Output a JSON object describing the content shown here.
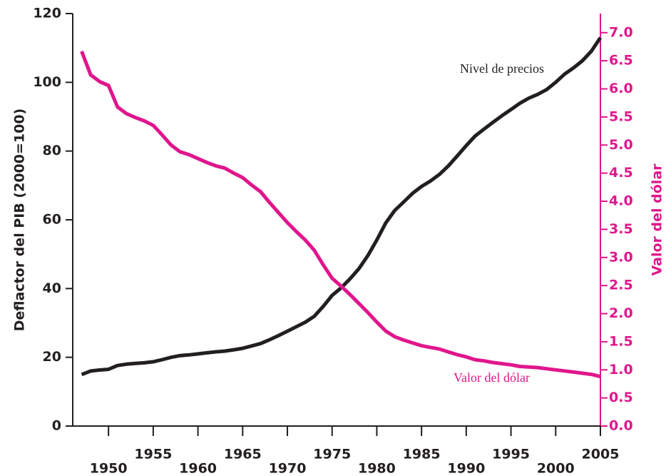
{
  "chart_data": {
    "type": "line",
    "x": [
      1947,
      1948,
      1949,
      1950,
      1951,
      1952,
      1953,
      1954,
      1955,
      1956,
      1957,
      1958,
      1959,
      1960,
      1961,
      1962,
      1963,
      1964,
      1965,
      1966,
      1967,
      1968,
      1969,
      1970,
      1971,
      1972,
      1973,
      1974,
      1975,
      1976,
      1977,
      1978,
      1979,
      1980,
      1981,
      1982,
      1983,
      1984,
      1985,
      1986,
      1987,
      1988,
      1989,
      1990,
      1991,
      1992,
      1993,
      1994,
      1995,
      1996,
      1997,
      1998,
      1999,
      2000,
      2001,
      2002,
      2003,
      2004,
      2005
    ],
    "series": [
      {
        "name": "Nivel de precios",
        "color": "#231f20",
        "axis": "y",
        "values": [
          15.0,
          16.0,
          16.3,
          16.5,
          17.6,
          18.0,
          18.2,
          18.4,
          18.7,
          19.3,
          20.0,
          20.5,
          20.7,
          21.0,
          21.3,
          21.6,
          21.8,
          22.2,
          22.6,
          23.3,
          24.0,
          25.1,
          26.3,
          27.6,
          28.9,
          30.2,
          31.9,
          34.8,
          38.0,
          40.2,
          42.8,
          45.8,
          49.6,
          54.1,
          59.1,
          62.7,
          65.2,
          67.7,
          69.7,
          71.3,
          73.2,
          75.7,
          78.6,
          81.6,
          84.4,
          86.4,
          88.4,
          90.3,
          92.1,
          93.9,
          95.4,
          96.5,
          97.9,
          100.0,
          102.4,
          104.2,
          106.3,
          109.1,
          113.0
        ]
      },
      {
        "name": "Valor del dólar",
        "color": "#e0168c",
        "axis": "y2",
        "values": [
          6.67,
          6.25,
          6.13,
          6.06,
          5.68,
          5.56,
          5.49,
          5.43,
          5.35,
          5.18,
          5.0,
          4.88,
          4.83,
          4.76,
          4.69,
          4.63,
          4.59,
          4.5,
          4.42,
          4.29,
          4.17,
          3.98,
          3.8,
          3.62,
          3.46,
          3.31,
          3.13,
          2.87,
          2.63,
          2.49,
          2.34,
          2.18,
          2.02,
          1.85,
          1.69,
          1.59,
          1.53,
          1.48,
          1.43,
          1.4,
          1.37,
          1.32,
          1.27,
          1.23,
          1.18,
          1.16,
          1.13,
          1.11,
          1.09,
          1.06,
          1.05,
          1.04,
          1.02,
          1.0,
          0.98,
          0.96,
          0.94,
          0.92,
          0.88
        ]
      }
    ],
    "ylabel": "Deflactor del PIB (2000=100)",
    "y2label": "Valor del dólar",
    "xlim": [
      1946,
      2005
    ],
    "xticks": [
      1950,
      1955,
      1960,
      1965,
      1970,
      1975,
      1980,
      1985,
      1990,
      1995,
      2000,
      2005
    ],
    "ylim": [
      0,
      120
    ],
    "yticks": [
      0,
      20,
      40,
      60,
      80,
      100,
      120
    ],
    "y2lim": [
      0,
      7.34
    ],
    "y2ticks": [
      {
        "value": 0,
        "label": "0.0"
      },
      0.5,
      {
        "value": 1,
        "label": "1.0"
      },
      1.5,
      {
        "value": 2,
        "label": "2.0"
      },
      2.5,
      {
        "value": 3,
        "label": "3.0"
      },
      3.5,
      {
        "value": 4,
        "label": "4.0"
      },
      4.5,
      {
        "value": 5,
        "label": "5.0"
      },
      5.5,
      {
        "value": 6,
        "label": "6.0"
      },
      6.5,
      {
        "value": 7,
        "label": "7.0"
      }
    ],
    "grid": false
  }
}
